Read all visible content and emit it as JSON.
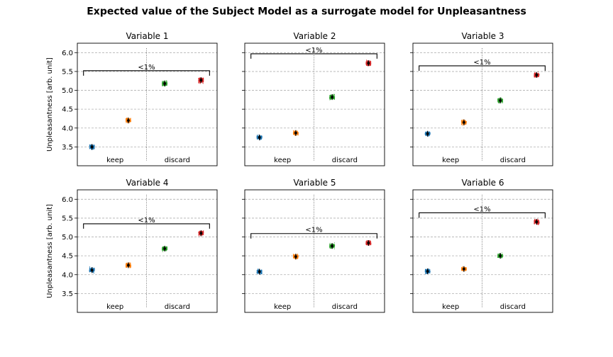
{
  "figure": {
    "title": "Expected value of the Subject Model as a surrogate model for Unpleasantness",
    "ylabel": "Unpleasantness [arb. unit]"
  },
  "colors": [
    "#1f77b4",
    "#ff7f0e",
    "#2ca02c",
    "#d62728"
  ],
  "chart_data": [
    {
      "type": "scatter",
      "title": "Variable 1",
      "ylabel": "Unpleasantness [arb. unit]",
      "ylim": [
        3.0,
        6.25
      ],
      "yticks": [
        "3.5",
        "4.0",
        "4.5",
        "5.0",
        "5.5",
        "6.0"
      ],
      "grid": true,
      "groups": [
        "keep",
        "discard"
      ],
      "series": [
        {
          "mean": 3.5,
          "spread": 0.11
        },
        {
          "mean": 4.2,
          "spread": 0.12
        },
        {
          "mean": 5.18,
          "spread": 0.12
        },
        {
          "mean": 5.27,
          "spread": 0.13
        }
      ],
      "bracket": {
        "from": 0,
        "to": 3,
        "y": 5.52,
        "label": "<1%"
      }
    },
    {
      "type": "scatter",
      "title": "Variable 2",
      "ylim": [
        3.0,
        6.25
      ],
      "yticks": [
        "3.5",
        "4.0",
        "4.5",
        "5.0",
        "5.5",
        "6.0"
      ],
      "grid": true,
      "groups": [
        "keep",
        "discard"
      ],
      "series": [
        {
          "mean": 3.75,
          "spread": 0.1
        },
        {
          "mean": 3.87,
          "spread": 0.11
        },
        {
          "mean": 4.82,
          "spread": 0.12
        },
        {
          "mean": 5.72,
          "spread": 0.12
        }
      ],
      "bracket": {
        "from": 0,
        "to": 3,
        "y": 5.97,
        "label": "<1%"
      }
    },
    {
      "type": "scatter",
      "title": "Variable 3",
      "ylim": [
        3.0,
        6.25
      ],
      "yticks": [
        "3.5",
        "4.0",
        "4.5",
        "5.0",
        "5.5",
        "6.0"
      ],
      "grid": true,
      "groups": [
        "keep",
        "discard"
      ],
      "series": [
        {
          "mean": 3.85,
          "spread": 0.11
        },
        {
          "mean": 4.15,
          "spread": 0.11
        },
        {
          "mean": 4.73,
          "spread": 0.11
        },
        {
          "mean": 5.41,
          "spread": 0.12
        }
      ],
      "bracket": {
        "from": 0,
        "to": 3,
        "y": 5.65,
        "label": "<1%"
      }
    },
    {
      "type": "scatter",
      "title": "Variable 4",
      "ylabel": "Unpleasantness [arb. unit]",
      "ylim": [
        3.0,
        6.25
      ],
      "yticks": [
        "3.5",
        "4.0",
        "4.5",
        "5.0",
        "5.5",
        "6.0"
      ],
      "grid": true,
      "groups": [
        "keep",
        "discard"
      ],
      "series": [
        {
          "mean": 4.12,
          "spread": 0.11
        },
        {
          "mean": 4.25,
          "spread": 0.11
        },
        {
          "mean": 4.69,
          "spread": 0.11
        },
        {
          "mean": 5.1,
          "spread": 0.12
        }
      ],
      "bracket": {
        "from": 0,
        "to": 3,
        "y": 5.35,
        "label": "<1%"
      }
    },
    {
      "type": "scatter",
      "title": "Variable 5",
      "ylim": [
        3.0,
        6.25
      ],
      "yticks": [
        "3.5",
        "4.0",
        "4.5",
        "5.0",
        "5.5",
        "6.0"
      ],
      "grid": true,
      "groups": [
        "keep",
        "discard"
      ],
      "series": [
        {
          "mean": 4.08,
          "spread": 0.11
        },
        {
          "mean": 4.48,
          "spread": 0.11
        },
        {
          "mean": 4.76,
          "spread": 0.11
        },
        {
          "mean": 4.84,
          "spread": 0.11
        }
      ],
      "bracket": {
        "from": 0,
        "to": 3,
        "y": 5.09,
        "label": "<1%"
      }
    },
    {
      "type": "scatter",
      "title": "Variable 6",
      "ylim": [
        3.0,
        6.25
      ],
      "yticks": [
        "3.5",
        "4.0",
        "4.5",
        "5.0",
        "5.5",
        "6.0"
      ],
      "grid": true,
      "groups": [
        "keep",
        "discard"
      ],
      "series": [
        {
          "mean": 4.09,
          "spread": 0.11
        },
        {
          "mean": 4.15,
          "spread": 0.1
        },
        {
          "mean": 4.5,
          "spread": 0.11
        },
        {
          "mean": 5.4,
          "spread": 0.12
        }
      ],
      "bracket": {
        "from": 0,
        "to": 3,
        "y": 5.64,
        "label": "<1%"
      }
    }
  ]
}
